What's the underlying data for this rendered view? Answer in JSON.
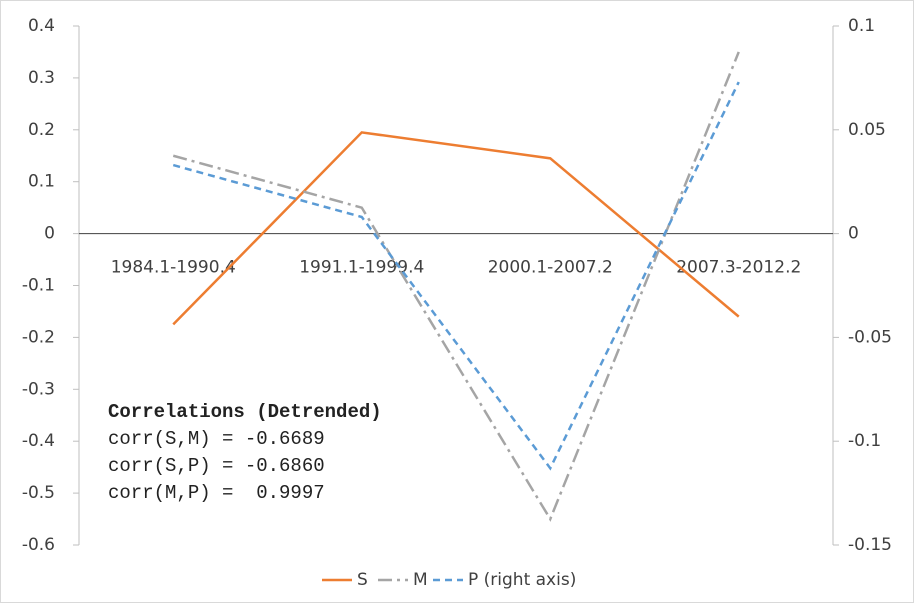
{
  "chart_data": {
    "type": "line",
    "categories": [
      "1984.1-1990.4",
      "1991.1-1999.4",
      "2000.1-2007.2",
      "2007.3-2012.2"
    ],
    "series": [
      {
        "name": "S",
        "color": "#ED7D31",
        "style": "solid",
        "values": [
          -0.175,
          0.195,
          0.145,
          -0.16
        ]
      },
      {
        "name": "M",
        "color": "#A5A5A5",
        "style": "dashdot",
        "values": [
          0.15,
          0.05,
          -0.55,
          0.35
        ]
      },
      {
        "name": "P (right axis)",
        "color": "#5B9BD5",
        "style": "dash",
        "axis": "y2",
        "values": [
          0.033,
          0.008,
          -0.113,
          0.073
        ]
      }
    ],
    "ylim": [
      -0.6,
      0.4
    ],
    "yticks": [
      -0.6,
      -0.5,
      -0.4,
      -0.3,
      -0.2,
      -0.1,
      0,
      0.1,
      0.2,
      0.3,
      0.4
    ],
    "y2lim": [
      -0.15,
      0.1
    ],
    "y2ticks": [
      -0.15,
      -0.1,
      -0.05,
      0,
      0.05,
      0.1
    ],
    "annotations": [
      "Correlations (Detrended)",
      "corr(S,M) = -0.6689",
      "corr(S,P) = -0.6860",
      "corr(M,P) =  0.9997"
    ],
    "legend": "bottom"
  }
}
